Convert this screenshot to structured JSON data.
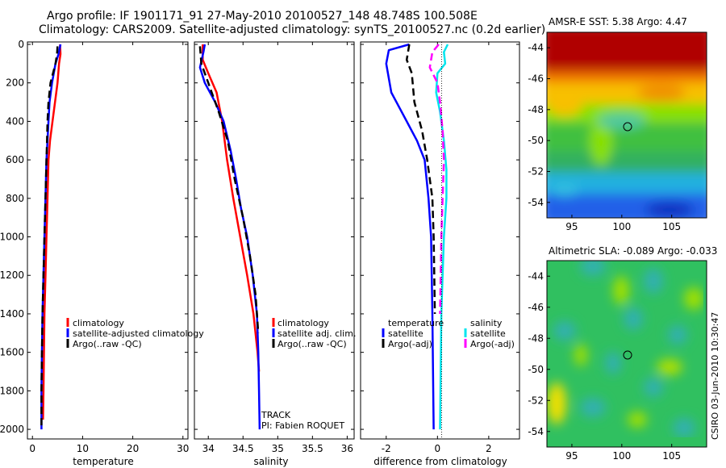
{
  "header": {
    "line1": "Argo profile: IF 1901171_91 27-May-2010 20100527_148 48.748S 100.508E",
    "line2": "Climatology: CARS2009. Satellite-adjusted climatology: synTS_20100527.nc (0.2d earlier)"
  },
  "colors": {
    "clim": "#ff0000",
    "sat": "#0000ff",
    "argo": "#000000",
    "sal_sat": "#00e5ee",
    "sal_argo": "#ff00ff"
  },
  "chart_data": [
    {
      "type": "line",
      "name": "temperature-profile",
      "xlabel": "temperature",
      "ylabel": "",
      "xlim": [
        -1,
        31
      ],
      "ylim": [
        2050,
        0
      ],
      "xticks": [
        0,
        10,
        20,
        30
      ],
      "yticks": [
        0,
        200,
        400,
        600,
        800,
        1000,
        1200,
        1400,
        1600,
        1800,
        2000
      ],
      "series": [
        {
          "name": "climatology",
          "color": "#ff0000",
          "dash": false,
          "points": [
            [
              5.5,
              0
            ],
            [
              5.6,
              50
            ],
            [
              5.3,
              100
            ],
            [
              5.0,
              200
            ],
            [
              4.5,
              300
            ],
            [
              4.0,
              400
            ],
            [
              3.5,
              500
            ],
            [
              3.2,
              600
            ],
            [
              3.0,
              800
            ],
            [
              2.8,
              1000
            ],
            [
              2.6,
              1200
            ],
            [
              2.4,
              1400
            ],
            [
              2.3,
              1600
            ],
            [
              2.2,
              1800
            ],
            [
              2.1,
              1950
            ]
          ]
        },
        {
          "name": "satellite-adjusted climatology",
          "color": "#0000ff",
          "dash": false,
          "points": [
            [
              5.6,
              0
            ],
            [
              5.2,
              50
            ],
            [
              4.6,
              100
            ],
            [
              3.9,
              200
            ],
            [
              3.4,
              300
            ],
            [
              3.2,
              400
            ],
            [
              3.0,
              500
            ],
            [
              2.8,
              600
            ],
            [
              2.6,
              800
            ],
            [
              2.4,
              1000
            ],
            [
              2.2,
              1200
            ],
            [
              2.0,
              1400
            ],
            [
              1.9,
              1600
            ],
            [
              1.8,
              1800
            ],
            [
              1.8,
              2000
            ]
          ]
        },
        {
          "name": "Argo(..raw -QC)",
          "color": "#000000",
          "dash": true,
          "points": [
            [
              5.0,
              10
            ],
            [
              4.9,
              50
            ],
            [
              4.6,
              100
            ],
            [
              3.6,
              200
            ],
            [
              3.2,
              300
            ],
            [
              3.0,
              400
            ],
            [
              2.9,
              500
            ],
            [
              2.8,
              600
            ],
            [
              2.6,
              800
            ],
            [
              2.4,
              1000
            ],
            [
              2.2,
              1200
            ],
            [
              2.0,
              1400
            ],
            [
              1.9,
              1600
            ],
            [
              1.8,
              1800
            ],
            [
              1.8,
              2000
            ]
          ]
        }
      ],
      "legend": [
        "climatology",
        "satellite-adjusted climatology",
        "Argo(..raw -QC)"
      ]
    },
    {
      "type": "line",
      "name": "salinity-profile",
      "xlabel": "salinity",
      "ylabel": "",
      "xlim": [
        33.8,
        36.1
      ],
      "ylim": [
        2050,
        0
      ],
      "xticks": [
        34,
        34.5,
        35,
        35.5,
        36
      ],
      "series": [
        {
          "name": "climatology",
          "color": "#ff0000",
          "dash": false,
          "points": [
            [
              33.92,
              0
            ],
            [
              33.92,
              80
            ],
            [
              34.0,
              150
            ],
            [
              34.12,
              250
            ],
            [
              34.2,
              400
            ],
            [
              34.27,
              600
            ],
            [
              34.36,
              800
            ],
            [
              34.46,
              1000
            ],
            [
              34.56,
              1200
            ],
            [
              34.65,
              1400
            ],
            [
              34.71,
              1600
            ],
            [
              34.73,
              1700
            ]
          ]
        },
        {
          "name": "satellite adj. clim.",
          "color": "#0000ff",
          "dash": false,
          "points": [
            [
              33.95,
              0
            ],
            [
              33.93,
              40
            ],
            [
              33.88,
              120
            ],
            [
              33.95,
              200
            ],
            [
              34.1,
              300
            ],
            [
              34.22,
              400
            ],
            [
              34.32,
              550
            ],
            [
              34.4,
              700
            ],
            [
              34.47,
              850
            ],
            [
              34.56,
              1000
            ],
            [
              34.64,
              1200
            ],
            [
              34.7,
              1400
            ],
            [
              34.72,
              1600
            ],
            [
              34.73,
              1800
            ],
            [
              34.74,
              2000
            ]
          ]
        },
        {
          "name": "Argo(..raw -QC)",
          "color": "#000000",
          "dash": true,
          "points": [
            [
              33.88,
              10
            ],
            [
              33.9,
              100
            ],
            [
              34.0,
              200
            ],
            [
              34.15,
              350
            ],
            [
              34.28,
              500
            ],
            [
              34.38,
              700
            ],
            [
              34.5,
              900
            ],
            [
              34.6,
              1100
            ],
            [
              34.68,
              1300
            ],
            [
              34.72,
              1500
            ]
          ]
        }
      ],
      "legend": [
        "climatology",
        "satellite adj. clim.",
        "Argo(..raw -QC)"
      ],
      "annotations": [
        "TRACK",
        "PI: Fabien ROQUET"
      ]
    },
    {
      "type": "line",
      "name": "difference-profile",
      "xlabel": "difference from climatology",
      "ylabel": "",
      "xlim": [
        -3,
        3.2
      ],
      "ylim": [
        2050,
        0
      ],
      "xticks": [
        -2,
        0,
        2
      ],
      "series": [
        {
          "name": "temperature satellite",
          "color": "#0000ff",
          "dash": false,
          "points": [
            [
              -1.1,
              0
            ],
            [
              -1.9,
              30
            ],
            [
              -2.0,
              100
            ],
            [
              -1.8,
              250
            ],
            [
              -1.2,
              400
            ],
            [
              -0.8,
              500
            ],
            [
              -0.5,
              600
            ],
            [
              -0.35,
              800
            ],
            [
              -0.25,
              1000
            ],
            [
              -0.2,
              1400
            ],
            [
              -0.15,
              2000
            ]
          ]
        },
        {
          "name": "temperature Argo(-adj)",
          "color": "#000000",
          "dash": true,
          "points": [
            [
              -1.1,
              0
            ],
            [
              -1.2,
              80
            ],
            [
              -1.0,
              150
            ],
            [
              -0.9,
              300
            ],
            [
              -0.6,
              450
            ],
            [
              -0.4,
              600
            ],
            [
              -0.2,
              800
            ],
            [
              -0.15,
              1000
            ],
            [
              -0.1,
              1400
            ]
          ]
        },
        {
          "name": "salinity satellite",
          "color": "#00e5ee",
          "dash": false,
          "points": [
            [
              0.4,
              0
            ],
            [
              0.25,
              40
            ],
            [
              0.3,
              100
            ],
            [
              0.0,
              150
            ],
            [
              -0.05,
              250
            ],
            [
              0.1,
              350
            ],
            [
              0.25,
              500
            ],
            [
              0.35,
              650
            ],
            [
              0.35,
              800
            ],
            [
              0.25,
              1000
            ],
            [
              0.15,
              1400
            ],
            [
              0.1,
              2000
            ]
          ]
        },
        {
          "name": "salinity Argo(-adj)",
          "color": "#ff00ff",
          "dash": true,
          "points": [
            [
              0.05,
              0
            ],
            [
              -0.2,
              40
            ],
            [
              -0.3,
              120
            ],
            [
              0.0,
              200
            ],
            [
              0.1,
              300
            ],
            [
              0.2,
              450
            ],
            [
              0.25,
              600
            ],
            [
              0.2,
              800
            ],
            [
              0.15,
              1000
            ],
            [
              0.1,
              1400
            ]
          ]
        }
      ],
      "legend_titles": [
        "temperature",
        "salinity"
      ],
      "legend": [
        "satellite",
        "Argo(-adj)",
        "satellite",
        "Argo(-adj)"
      ]
    },
    {
      "type": "heatmap",
      "name": "sst-map",
      "title": "AMSR-E SST: 5.38 Argo: 4.47",
      "xticks": [
        95,
        100,
        105
      ],
      "yticks": [
        -44,
        -46,
        -48,
        -50,
        -52,
        -54
      ],
      "xlim": [
        92.5,
        108.5
      ],
      "ylim": [
        -55,
        -43
      ],
      "marker": [
        100.5,
        -48.75
      ]
    },
    {
      "type": "heatmap",
      "name": "sla-map",
      "title": "Altimetric SLA: -0.089 Argo: -0.033",
      "xticks": [
        95,
        100,
        105
      ],
      "yticks": [
        -44,
        -46,
        -48,
        -50,
        -52,
        -54
      ],
      "xlim": [
        92.5,
        108.5
      ],
      "ylim": [
        -55,
        -43
      ],
      "marker": [
        100.5,
        -48.75
      ]
    }
  ],
  "footer": {
    "stamp": "CSIRO 03-Jun-2010 10:30:47"
  }
}
